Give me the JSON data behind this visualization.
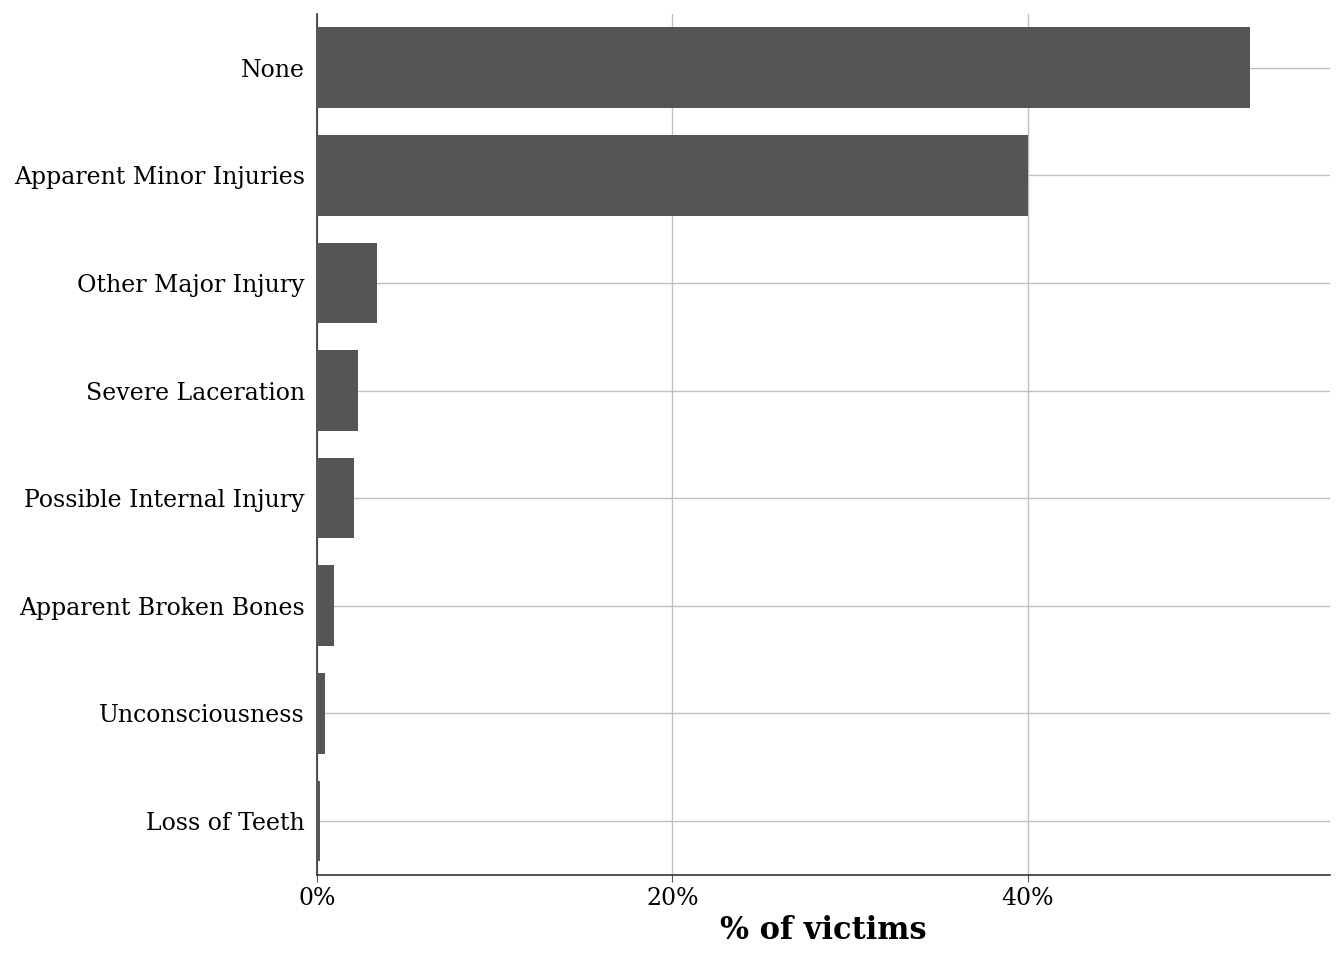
{
  "categories": [
    "Loss of Teeth",
    "Unconsciousness",
    "Apparent Broken Bones",
    "Possible Internal Injury",
    "Severe Laceration",
    "Other Major Injury",
    "Apparent Minor Injuries",
    "None"
  ],
  "values": [
    0.18,
    0.45,
    0.95,
    2.1,
    2.3,
    3.4,
    40.0,
    52.5
  ],
  "bar_color": "#555555",
  "xlabel": "% of victims",
  "xlim": [
    0,
    57
  ],
  "xticks": [
    0,
    20,
    40
  ],
  "xtick_labels": [
    "0%",
    "20%",
    "40%"
  ],
  "grid_color": "#c0c0c0",
  "background_color": "#ffffff",
  "bar_height": 0.75,
  "xlabel_fontsize": 22,
  "tick_fontsize": 17,
  "ylabel_fontsize": 17
}
